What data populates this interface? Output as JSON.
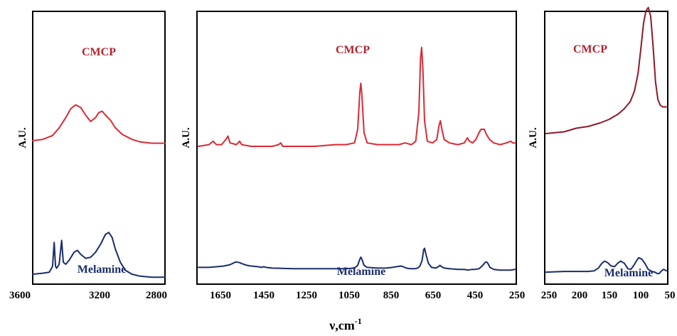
{
  "chart_data": [
    {
      "type": "line",
      "panel": "left",
      "ylabel": "A.U.",
      "xlim": [
        3600,
        2800
      ],
      "x_reversed": true,
      "xticks": [
        "3600",
        "3200",
        "2800"
      ],
      "series": [
        {
          "name": "CMCP",
          "color": "#d92a35",
          "points": [
            [
              3600,
              0.4
            ],
            [
              3540,
              0.41
            ],
            [
              3480,
              0.44
            ],
            [
              3440,
              0.5
            ],
            [
              3400,
              0.58
            ],
            [
              3370,
              0.65
            ],
            [
              3340,
              0.68
            ],
            [
              3310,
              0.66
            ],
            [
              3280,
              0.6
            ],
            [
              3250,
              0.55
            ],
            [
              3220,
              0.58
            ],
            [
              3200,
              0.62
            ],
            [
              3180,
              0.63
            ],
            [
              3160,
              0.6
            ],
            [
              3130,
              0.56
            ],
            [
              3100,
              0.5
            ],
            [
              3060,
              0.45
            ],
            [
              3000,
              0.41
            ],
            [
              2950,
              0.39
            ],
            [
              2880,
              0.38
            ],
            [
              2800,
              0.38
            ]
          ]
        },
        {
          "name": "Melamine",
          "color": "#1a2d6b",
          "points": [
            [
              3600,
              0.1
            ],
            [
              3540,
              0.11
            ],
            [
              3500,
              0.12
            ],
            [
              3480,
              0.18
            ],
            [
              3470,
              0.42
            ],
            [
              3462,
              0.18
            ],
            [
              3455,
              0.16
            ],
            [
              3440,
              0.2
            ],
            [
              3425,
              0.44
            ],
            [
              3415,
              0.22
            ],
            [
              3400,
              0.2
            ],
            [
              3380,
              0.24
            ],
            [
              3350,
              0.32
            ],
            [
              3330,
              0.34
            ],
            [
              3310,
              0.3
            ],
            [
              3280,
              0.26
            ],
            [
              3250,
              0.27
            ],
            [
              3220,
              0.32
            ],
            [
              3190,
              0.4
            ],
            [
              3160,
              0.5
            ],
            [
              3140,
              0.52
            ],
            [
              3120,
              0.47
            ],
            [
              3100,
              0.35
            ],
            [
              3070,
              0.22
            ],
            [
              3040,
              0.14
            ],
            [
              3000,
              0.1
            ],
            [
              2950,
              0.08
            ],
            [
              2880,
              0.07
            ],
            [
              2800,
              0.07
            ]
          ]
        }
      ]
    },
    {
      "type": "line",
      "panel": "center",
      "ylabel": "A.U.",
      "xlim": [
        1750,
        250
      ],
      "x_reversed": true,
      "xticks": [
        "1650",
        "1450",
        "1250",
        "1050",
        "850",
        "650",
        "450",
        "250"
      ],
      "series": [
        {
          "name": "CMCP",
          "color": "#d92a35",
          "points": [
            [
              1750,
              0.4
            ],
            [
              1700,
              0.41
            ],
            [
              1680,
              0.43
            ],
            [
              1665,
              0.41
            ],
            [
              1640,
              0.41
            ],
            [
              1620,
              0.44
            ],
            [
              1610,
              0.46
            ],
            [
              1600,
              0.42
            ],
            [
              1570,
              0.41
            ],
            [
              1555,
              0.43
            ],
            [
              1545,
              0.41
            ],
            [
              1500,
              0.4
            ],
            [
              1450,
              0.4
            ],
            [
              1400,
              0.4
            ],
            [
              1370,
              0.41
            ],
            [
              1360,
              0.42
            ],
            [
              1350,
              0.4
            ],
            [
              1300,
              0.4
            ],
            [
              1200,
              0.4
            ],
            [
              1100,
              0.41
            ],
            [
              1050,
              0.41
            ],
            [
              1010,
              0.42
            ],
            [
              995,
              0.5
            ],
            [
              985,
              0.72
            ],
            [
              980,
              0.77
            ],
            [
              975,
              0.7
            ],
            [
              965,
              0.48
            ],
            [
              950,
              0.42
            ],
            [
              900,
              0.41
            ],
            [
              850,
              0.41
            ],
            [
              800,
              0.41
            ],
            [
              770,
              0.42
            ],
            [
              740,
              0.41
            ],
            [
              720,
              0.43
            ],
            [
              705,
              0.6
            ],
            [
              697,
              0.92
            ],
            [
              692,
              0.98
            ],
            [
              686,
              0.85
            ],
            [
              678,
              0.55
            ],
            [
              665,
              0.43
            ],
            [
              640,
              0.42
            ],
            [
              620,
              0.44
            ],
            [
              610,
              0.52
            ],
            [
              603,
              0.55
            ],
            [
              596,
              0.5
            ],
            [
              585,
              0.44
            ],
            [
              560,
              0.42
            ],
            [
              520,
              0.41
            ],
            [
              490,
              0.42
            ],
            [
              475,
              0.45
            ],
            [
              465,
              0.43
            ],
            [
              450,
              0.42
            ],
            [
              435,
              0.44
            ],
            [
              420,
              0.48
            ],
            [
              410,
              0.5
            ],
            [
              395,
              0.5
            ],
            [
              385,
              0.47
            ],
            [
              370,
              0.44
            ],
            [
              350,
              0.42
            ],
            [
              320,
              0.41
            ],
            [
              290,
              0.42
            ],
            [
              270,
              0.43
            ],
            [
              260,
              0.42
            ],
            [
              250,
              0.42
            ]
          ]
        },
        {
          "name": "Melamine",
          "color": "#1a2d6b",
          "points": [
            [
              1750,
              0.1
            ],
            [
              1700,
              0.1
            ],
            [
              1660,
              0.11
            ],
            [
              1630,
              0.12
            ],
            [
              1600,
              0.14
            ],
            [
              1580,
              0.17
            ],
            [
              1570,
              0.18
            ],
            [
              1555,
              0.17
            ],
            [
              1540,
              0.15
            ],
            [
              1520,
              0.13
            ],
            [
              1500,
              0.12
            ],
            [
              1470,
              0.11
            ],
            [
              1450,
              0.1
            ],
            [
              1440,
              0.11
            ],
            [
              1430,
              0.1
            ],
            [
              1400,
              0.09
            ],
            [
              1300,
              0.08
            ],
            [
              1200,
              0.08
            ],
            [
              1100,
              0.08
            ],
            [
              1050,
              0.08
            ],
            [
              1010,
              0.09
            ],
            [
              995,
              0.13
            ],
            [
              985,
              0.22
            ],
            [
              980,
              0.25
            ],
            [
              975,
              0.22
            ],
            [
              965,
              0.13
            ],
            [
              950,
              0.1
            ],
            [
              900,
              0.09
            ],
            [
              860,
              0.09
            ],
            [
              830,
              0.1
            ],
            [
              810,
              0.11
            ],
            [
              790,
              0.12
            ],
            [
              780,
              0.11
            ],
            [
              765,
              0.09
            ],
            [
              745,
              0.08
            ],
            [
              725,
              0.08
            ],
            [
              710,
              0.09
            ],
            [
              700,
              0.12
            ],
            [
              690,
              0.2
            ],
            [
              682,
              0.36
            ],
            [
              678,
              0.38
            ],
            [
              672,
              0.3
            ],
            [
              660,
              0.16
            ],
            [
              645,
              0.1
            ],
            [
              625,
              0.09
            ],
            [
              612,
              0.11
            ],
            [
              605,
              0.13
            ],
            [
              598,
              0.11
            ],
            [
              585,
              0.09
            ],
            [
              560,
              0.08
            ],
            [
              520,
              0.07
            ],
            [
              490,
              0.07
            ],
            [
              470,
              0.06
            ],
            [
              455,
              0.07
            ],
            [
              440,
              0.07
            ],
            [
              420,
              0.08
            ],
            [
              405,
              0.12
            ],
            [
              392,
              0.17
            ],
            [
              385,
              0.18
            ],
            [
              378,
              0.16
            ],
            [
              368,
              0.1
            ],
            [
              350,
              0.07
            ],
            [
              320,
              0.06
            ],
            [
              290,
              0.06
            ],
            [
              270,
              0.06
            ],
            [
              250,
              0.07
            ]
          ]
        }
      ]
    },
    {
      "type": "line",
      "panel": "right",
      "ylabel": "A.U.",
      "xlim": [
        250,
        50
      ],
      "x_reversed": true,
      "xticks": [
        "250",
        "200",
        "150",
        "100",
        "50"
      ],
      "series": [
        {
          "name": "CMCP",
          "color": "#8b1a2a",
          "points": [
            [
              250,
              0.36
            ],
            [
              220,
              0.37
            ],
            [
              200,
              0.39
            ],
            [
              180,
              0.4
            ],
            [
              160,
              0.42
            ],
            [
              145,
              0.44
            ],
            [
              130,
              0.47
            ],
            [
              120,
              0.5
            ],
            [
              110,
              0.54
            ],
            [
              103,
              0.6
            ],
            [
              97,
              0.7
            ],
            [
              92,
              0.85
            ],
            [
              88,
              0.98
            ],
            [
              84,
              1.05
            ],
            [
              80,
              1.07
            ],
            [
              76,
              1.02
            ],
            [
              72,
              0.85
            ],
            [
              68,
              0.65
            ],
            [
              64,
              0.55
            ],
            [
              60,
              0.52
            ],
            [
              56,
              0.51
            ],
            [
              52,
              0.51
            ],
            [
              50,
              0.51
            ]
          ]
        },
        {
          "name": "Melamine",
          "color": "#1a2d6b",
          "points": [
            [
              250,
              0.04
            ],
            [
              220,
              0.05
            ],
            [
              200,
              0.05
            ],
            [
              180,
              0.05
            ],
            [
              170,
              0.06
            ],
            [
              163,
              0.1
            ],
            [
              158,
              0.16
            ],
            [
              153,
              0.2
            ],
            [
              148,
              0.18
            ],
            [
              142,
              0.13
            ],
            [
              136,
              0.12
            ],
            [
              131,
              0.17
            ],
            [
              126,
              0.2
            ],
            [
              120,
              0.17
            ],
            [
              114,
              0.09
            ],
            [
              109,
              0.08
            ],
            [
              104,
              0.14
            ],
            [
              100,
              0.2
            ],
            [
              96,
              0.25
            ],
            [
              91,
              0.23
            ],
            [
              86,
              0.17
            ],
            [
              80,
              0.08
            ],
            [
              74,
              0.05
            ],
            [
              69,
              0.04
            ],
            [
              65,
              0.02
            ],
            [
              62,
              0.02
            ],
            [
              59,
              0.05
            ],
            [
              55,
              0.08
            ],
            [
              52,
              0.07
            ],
            [
              50,
              0.06
            ]
          ]
        }
      ]
    }
  ],
  "shared_xlabel": "ν,cm",
  "shared_xlabel_superscript": "-1",
  "panel_labels": {
    "left": {
      "top": "CMCP",
      "bottom": "Melamine"
    },
    "center": {
      "top": "CMCP",
      "bottom": "Melamine"
    },
    "right": {
      "top": "CMCP",
      "bottom": "Melamine"
    }
  }
}
